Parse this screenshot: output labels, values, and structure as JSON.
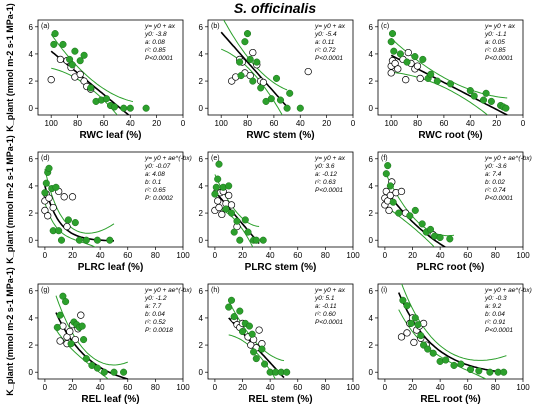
{
  "figure_title": "S. officinalis",
  "colors": {
    "green": "#2ca02c",
    "open_edge": "#000000",
    "fit": "#000000",
    "ci": "#2ca02c"
  },
  "ylabels": [
    "K_plant (mmol m-2 s-1 MPa-1)",
    "K_plant (mmol m-2 s-1 MPa-1)",
    "K_plant (mmol m-2 s-1 MPa-1)"
  ],
  "chart_data": [
    {
      "panel": "(a)",
      "type": "scatter",
      "xlabel": "RWC leaf (%)",
      "xlim": [
        110,
        0
      ],
      "xticks": [
        100,
        80,
        60,
        40,
        20,
        0
      ],
      "ylim": [
        -0.5,
        6.5
      ],
      "yticks": [
        0,
        2,
        4,
        6
      ],
      "annotation": [
        "y= y0 + ax",
        "y0: -3.8",
        "a: 0.08",
        "r²: 0.85",
        "P<0.0001"
      ],
      "model": "linear",
      "params": {
        "y0": -3.8,
        "a": 0.08
      },
      "fit_range": [
        38,
        100
      ],
      "open_points": [
        [
          100,
          2.1
        ],
        [
          93,
          3.6
        ],
        [
          88,
          3.5
        ],
        [
          85,
          3.0
        ],
        [
          82,
          2.3
        ],
        [
          78,
          2.5
        ],
        [
          75,
          2.0
        ],
        [
          73,
          1.6
        ],
        [
          70,
          1.4
        ]
      ],
      "green_points": [
        [
          98,
          4.7
        ],
        [
          97,
          5.5
        ],
        [
          91,
          4.7
        ],
        [
          86,
          3.6
        ],
        [
          84,
          3.2
        ],
        [
          82,
          4.2
        ],
        [
          78,
          3.5
        ],
        [
          75,
          3.9
        ],
        [
          70,
          1.5
        ],
        [
          66,
          0.5
        ],
        [
          62,
          0.6
        ],
        [
          58,
          0.7
        ],
        [
          55,
          0.2
        ],
        [
          52,
          0.1
        ],
        [
          45,
          0.0
        ],
        [
          40,
          0.0
        ],
        [
          28,
          0.0
        ]
      ]
    },
    {
      "panel": "(d)",
      "type": "scatter",
      "xlabel": "PLRC leaf (%)",
      "xlim": [
        -5,
        100
      ],
      "xticks": [
        0,
        20,
        40,
        60,
        80,
        100
      ],
      "ylim": [
        -0.5,
        6.5
      ],
      "yticks": [
        0,
        2,
        4,
        6
      ],
      "annotation": [
        "y= y0 + ae^(-bx)",
        "y0: -0.07",
        "a: 4.08",
        "b: 0.1",
        "r²: 0.65",
        "P: 0.0002"
      ],
      "model": "exp",
      "params": {
        "y0": -0.07,
        "a": 4.08,
        "b": 0.1
      },
      "fit_range": [
        0,
        50
      ],
      "open_points": [
        [
          0,
          2.2
        ],
        [
          0,
          2.9
        ],
        [
          1,
          3.4
        ],
        [
          3,
          3.1
        ],
        [
          6,
          2.4
        ],
        [
          10,
          3.6
        ],
        [
          14,
          3.2
        ],
        [
          16,
          1.0
        ],
        [
          20,
          3.2
        ],
        [
          2,
          1.8
        ]
      ],
      "green_points": [
        [
          0,
          3.5
        ],
        [
          1,
          4.2
        ],
        [
          2,
          5.0
        ],
        [
          3,
          5.3
        ],
        [
          5,
          3.8
        ],
        [
          6,
          0.7
        ],
        [
          10,
          0.7
        ],
        [
          12,
          0.0
        ],
        [
          17,
          1.5
        ],
        [
          22,
          1.3
        ],
        [
          25,
          0.0
        ],
        [
          30,
          0.0
        ],
        [
          38,
          0.0
        ],
        [
          47,
          0.0
        ],
        [
          8,
          3.9
        ]
      ]
    },
    {
      "panel": "(g)",
      "type": "scatter",
      "xlabel": "REL leaf (%)",
      "xlim": [
        -5,
        100
      ],
      "xticks": [
        0,
        20,
        40,
        60,
        80,
        100
      ],
      "ylim": [
        -0.5,
        6.5
      ],
      "yticks": [
        0,
        2,
        4,
        6
      ],
      "annotation": [
        "y= y0 + ae^(-bx)",
        "y0: -1.2",
        "a: 7.7",
        "b: 0.04",
        "r²: 0.52",
        "P: 0.0018"
      ],
      "model": "exp",
      "params": {
        "y0": -1.2,
        "a": 7.7,
        "b": 0.04
      },
      "fit_range": [
        8,
        60
      ],
      "open_points": [
        [
          11,
          2.3
        ],
        [
          13,
          3.4
        ],
        [
          16,
          2.6
        ],
        [
          18,
          3.0
        ],
        [
          20,
          3.5
        ],
        [
          24,
          3.2
        ],
        [
          26,
          4.2
        ],
        [
          16,
          2.1
        ],
        [
          22,
          2.4
        ]
      ],
      "green_points": [
        [
          9,
          3.3
        ],
        [
          11,
          4.2
        ],
        [
          13,
          5.6
        ],
        [
          15,
          5.2
        ],
        [
          19,
          2.1
        ],
        [
          21,
          3.7
        ],
        [
          23,
          3.5
        ],
        [
          25,
          3.3
        ],
        [
          27,
          3.4
        ],
        [
          28,
          2.4
        ],
        [
          30,
          1.0
        ],
        [
          34,
          0.5
        ],
        [
          38,
          0.3
        ],
        [
          43,
          0.0
        ],
        [
          50,
          0.0
        ],
        [
          57,
          0.0
        ]
      ]
    },
    {
      "panel": "(b)",
      "type": "scatter",
      "xlabel": "RWC stem (%)",
      "xlim": [
        110,
        0
      ],
      "xticks": [
        100,
        80,
        60,
        40,
        20,
        0
      ],
      "ylim": [
        -0.5,
        6.5
      ],
      "yticks": [
        0,
        2,
        4,
        6
      ],
      "annotation": [
        "y= y0 + ax",
        "y0: -5.4",
        "a: 0.11",
        "r²: 0.72",
        "P<0.0001"
      ],
      "model": "linear",
      "params": {
        "y0": -5.4,
        "a": 0.11
      },
      "fit_range": [
        50,
        100
      ],
      "open_points": [
        [
          92,
          2.0
        ],
        [
          89,
          2.3
        ],
        [
          86,
          3.6
        ],
        [
          84,
          3.4
        ],
        [
          82,
          2.6
        ],
        [
          78,
          2.4
        ],
        [
          76,
          4.1
        ],
        [
          73,
          3.2
        ],
        [
          70,
          2.0
        ],
        [
          68,
          1.9
        ],
        [
          34,
          2.7
        ]
      ],
      "green_points": [
        [
          86,
          3.4
        ],
        [
          85,
          2.4
        ],
        [
          82,
          4.9
        ],
        [
          80,
          5.5
        ],
        [
          78,
          3.6
        ],
        [
          76,
          2.0
        ],
        [
          73,
          3.4
        ],
        [
          70,
          1.5
        ],
        [
          66,
          0.5
        ],
        [
          62,
          0.7
        ],
        [
          58,
          2.2
        ],
        [
          55,
          0.6
        ],
        [
          50,
          0.0
        ],
        [
          48,
          1.1
        ],
        [
          40,
          0.0
        ]
      ]
    },
    {
      "panel": "(e)",
      "type": "scatter",
      "xlabel": "PLRC stem (%)",
      "xlim": [
        -5,
        100
      ],
      "xticks": [
        0,
        20,
        40,
        60,
        80,
        100
      ],
      "ylim": [
        -0.5,
        6.5
      ],
      "yticks": [
        0,
        2,
        4,
        6
      ],
      "annotation": [
        "y= y0 + ax",
        "y0: 3.6",
        "a: -0.12",
        "r²: 0.63",
        "P<0.0001"
      ],
      "model": "linear",
      "params": {
        "y0": 3.6,
        "a": -0.12
      },
      "fit_range": [
        0,
        32
      ],
      "open_points": [
        [
          0,
          2.2
        ],
        [
          1,
          3.5
        ],
        [
          2,
          2.9
        ],
        [
          4,
          3.5
        ],
        [
          5,
          1.9
        ],
        [
          6,
          3.6
        ],
        [
          8,
          2.7
        ],
        [
          10,
          3.3
        ],
        [
          12,
          2.6
        ],
        [
          16,
          1.0
        ],
        [
          3,
          2.4
        ]
      ],
      "green_points": [
        [
          0,
          3.4
        ],
        [
          1,
          3.9
        ],
        [
          2,
          4.5
        ],
        [
          3,
          5.6
        ],
        [
          6,
          3.9
        ],
        [
          8,
          2.3
        ],
        [
          10,
          4.0
        ],
        [
          12,
          2.0
        ],
        [
          14,
          0.6
        ],
        [
          16,
          1.4
        ],
        [
          18,
          0.0
        ],
        [
          22,
          1.5
        ],
        [
          24,
          0.6
        ],
        [
          28,
          0.0
        ],
        [
          30,
          0.0
        ],
        [
          35,
          0.0
        ]
      ]
    },
    {
      "panel": "(h)",
      "type": "scatter",
      "xlabel": "REL stem (%)",
      "xlim": [
        -5,
        100
      ],
      "xticks": [
        0,
        20,
        40,
        60,
        80,
        100
      ],
      "ylim": [
        -0.5,
        6.5
      ],
      "yticks": [
        0,
        2,
        4,
        6
      ],
      "annotation": [
        "y= y0 + ax",
        "y0: 5.1",
        "a: -0.11",
        "r²: 0.60",
        "P<0.0001"
      ],
      "model": "linear",
      "params": {
        "y0": 5.1,
        "a": -0.11
      },
      "fit_range": [
        10,
        50
      ],
      "open_points": [
        [
          14,
          3.9
        ],
        [
          16,
          3.5
        ],
        [
          18,
          3.3
        ],
        [
          20,
          3.6
        ],
        [
          24,
          2.6
        ],
        [
          26,
          2.0
        ],
        [
          28,
          2.4
        ],
        [
          30,
          1.8
        ],
        [
          32,
          3.1
        ],
        [
          34,
          2.1
        ]
      ],
      "green_points": [
        [
          10,
          4.8
        ],
        [
          12,
          5.3
        ],
        [
          14,
          4.1
        ],
        [
          18,
          4.5
        ],
        [
          20,
          3.0
        ],
        [
          22,
          3.6
        ],
        [
          25,
          3.4
        ],
        [
          27,
          2.8
        ],
        [
          28,
          1.5
        ],
        [
          30,
          1.0
        ],
        [
          34,
          1.7
        ],
        [
          36,
          0.6
        ],
        [
          40,
          0.0
        ],
        [
          44,
          0.0
        ],
        [
          48,
          0.0
        ],
        [
          52,
          0.0
        ]
      ]
    },
    {
      "panel": "(c)",
      "type": "scatter",
      "xlabel": "RWC root (%)",
      "xlim": [
        110,
        0
      ],
      "xticks": [
        100,
        80,
        60,
        40,
        20,
        0
      ],
      "ylim": [
        -0.5,
        6.5
      ],
      "yticks": [
        0,
        2,
        4,
        6
      ],
      "annotation": [
        "y= y0 + ax",
        "y0: -1.1",
        "a: 0.05",
        "r²: 0.85",
        "P<0.0001"
      ],
      "model": "linear",
      "params": {
        "y0": -1.1,
        "a": 0.05
      },
      "fit_range": [
        12,
        100
      ],
      "open_points": [
        [
          100,
          2.6
        ],
        [
          100,
          3.1
        ],
        [
          99,
          3.5
        ],
        [
          97,
          3.3
        ],
        [
          95,
          2.9
        ],
        [
          91,
          3.6
        ],
        [
          89,
          2.1
        ],
        [
          87,
          4.1
        ],
        [
          85,
          3.3
        ],
        [
          82,
          2.9
        ],
        [
          80,
          3.1
        ],
        [
          78,
          2.2
        ]
      ],
      "green_points": [
        [
          100,
          4.9
        ],
        [
          99,
          5.5
        ],
        [
          98,
          4.2
        ],
        [
          93,
          4.0
        ],
        [
          88,
          3.4
        ],
        [
          82,
          3.8
        ],
        [
          76,
          3.6
        ],
        [
          72,
          2.2
        ],
        [
          70,
          2.5
        ],
        [
          65,
          2.0
        ],
        [
          55,
          1.8
        ],
        [
          40,
          1.3
        ],
        [
          37,
          0.9
        ],
        [
          30,
          0.6
        ],
        [
          28,
          1.1
        ],
        [
          24,
          0.5
        ],
        [
          17,
          0.2
        ],
        [
          15,
          0.1
        ],
        [
          13,
          0.0
        ]
      ]
    },
    {
      "panel": "(f)",
      "type": "scatter",
      "xlabel": "PLRC root (%)",
      "xlim": [
        -5,
        100
      ],
      "xticks": [
        0,
        20,
        40,
        60,
        80,
        100
      ],
      "ylim": [
        -0.5,
        6.5
      ],
      "yticks": [
        0,
        2,
        4,
        6
      ],
      "annotation": [
        "y= y0 + ae^(-bx)",
        "y0: -3.6",
        "a: 7.4",
        "b: 0.02",
        "r²: 0.74",
        "P<0.0001"
      ],
      "model": "exp",
      "params": {
        "y0": -3.6,
        "a": 7.4,
        "b": 0.02
      },
      "fit_range": [
        0,
        50
      ],
      "open_points": [
        [
          0,
          2.6
        ],
        [
          0,
          3.1
        ],
        [
          1,
          3.6
        ],
        [
          2,
          2.9
        ],
        [
          3,
          2.2
        ],
        [
          4,
          3.3
        ],
        [
          5,
          4.3
        ],
        [
          8,
          3.5
        ],
        [
          12,
          3.6
        ],
        [
          15,
          2.0
        ],
        [
          35,
          0.4
        ]
      ],
      "green_points": [
        [
          1,
          4.9
        ],
        [
          2,
          5.5
        ],
        [
          4,
          4.0
        ],
        [
          6,
          2.8
        ],
        [
          10,
          2.0
        ],
        [
          18,
          1.8
        ],
        [
          22,
          2.2
        ],
        [
          27,
          1.2
        ],
        [
          30,
          0.6
        ],
        [
          33,
          0.8
        ],
        [
          36,
          0.3
        ],
        [
          40,
          0.2
        ],
        [
          47,
          0.1
        ]
      ]
    },
    {
      "panel": "(i)",
      "type": "scatter",
      "xlabel": "REL root (%)",
      "xlim": [
        -5,
        100
      ],
      "xticks": [
        0,
        20,
        40,
        60,
        80,
        100
      ],
      "ylim": [
        -0.5,
        6.5
      ],
      "yticks": [
        0,
        2,
        4,
        6
      ],
      "annotation": [
        "y= y0 + ae^(-bx)",
        "y0: -0.3",
        "a: 9.2",
        "b: 0.04",
        "r²: 0.91",
        "P<0.0001"
      ],
      "model": "exp",
      "params": {
        "y0": -0.3,
        "a": 9.2,
        "b": 0.04
      },
      "fit_range": [
        10,
        88
      ],
      "open_points": [
        [
          12,
          2.6
        ],
        [
          16,
          2.9
        ],
        [
          18,
          3.6
        ],
        [
          20,
          4.0
        ],
        [
          21,
          2.2
        ],
        [
          23,
          3.1
        ],
        [
          25,
          3.4
        ],
        [
          26,
          2.5
        ],
        [
          28,
          3.6
        ],
        [
          30,
          2.0
        ]
      ],
      "green_points": [
        [
          13,
          5.3
        ],
        [
          16,
          4.9
        ],
        [
          19,
          3.6
        ],
        [
          22,
          4.0
        ],
        [
          24,
          3.5
        ],
        [
          26,
          2.7
        ],
        [
          28,
          2.0
        ],
        [
          31,
          1.7
        ],
        [
          35,
          1.4
        ],
        [
          40,
          0.8
        ],
        [
          44,
          0.9
        ],
        [
          50,
          0.5
        ],
        [
          55,
          0.6
        ],
        [
          62,
          0.2
        ],
        [
          68,
          0.1
        ],
        [
          76,
          0.0
        ],
        [
          82,
          0.0
        ],
        [
          86,
          0.0
        ]
      ]
    }
  ]
}
